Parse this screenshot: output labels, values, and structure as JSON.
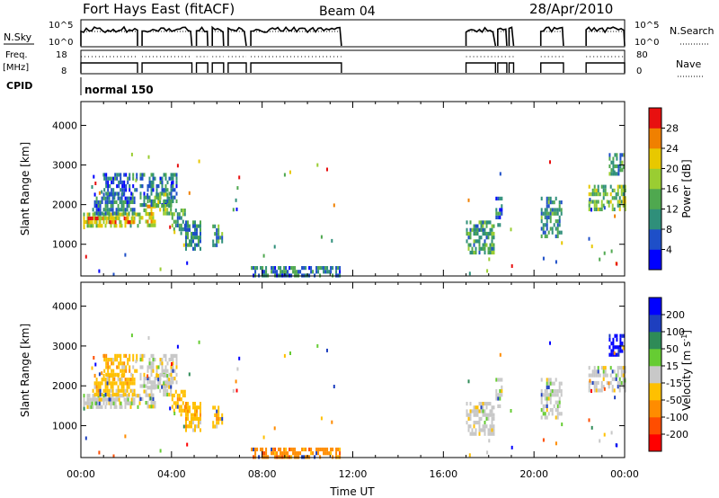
{
  "header": {
    "station": "Fort Hays East (fitACF)",
    "beam": "Beam 04",
    "date": "28/Apr/2010"
  },
  "aux_panels": {
    "nsky_label": "N.Sky",
    "nsky_ticks": [
      "10^5",
      "10^0"
    ],
    "nsearch_label": "N.Search",
    "nsearch_ticks": [
      "10^5",
      "10^0"
    ],
    "freq_label_1": "Freq.",
    "freq_label_2": "[MHz]",
    "freq_ticks": [
      "18",
      "8"
    ],
    "nave_label": "Nave",
    "nave_ticks": [
      "80",
      "0"
    ],
    "cpid_label": "CPID",
    "cpid_value": "normal 150",
    "data_blocks_hours": [
      [
        0,
        2.5
      ],
      [
        2.7,
        4.9
      ],
      [
        5.1,
        5.6
      ],
      [
        5.8,
        6.3
      ],
      [
        6.5,
        7.3
      ],
      [
        7.5,
        11.5
      ],
      [
        17,
        18.3
      ],
      [
        18.4,
        18.8
      ],
      [
        18.9,
        19.1
      ],
      [
        20.3,
        21.3
      ],
      [
        22.3,
        24
      ]
    ]
  },
  "colors": {
    "power_scale": [
      "#0000ff",
      "#1e4fc8",
      "#2f8f7a",
      "#4fa84f",
      "#9acd32",
      "#e8c800",
      "#f08000",
      "#e81010"
    ],
    "velocity_scale": [
      "#ff0000",
      "#ff4d00",
      "#ff8c00",
      "#ffc000",
      "#c8c8c8",
      "#66cc33",
      "#2e8b57",
      "#1e3fbf",
      "#0000ff"
    ]
  },
  "chart_data": [
    {
      "type": "heatmap",
      "name": "power-panel",
      "xlabel": "",
      "ylabel": "Slant Range [km]",
      "xlim": [
        0,
        24
      ],
      "ylim": [
        200,
        4600
      ],
      "y_ticks": [
        "1000",
        "2000",
        "3000",
        "4000"
      ],
      "colorbar_label": "Power [dB]",
      "colorbar_ticks": [
        "4",
        "8",
        "12",
        "16",
        "20",
        "24",
        "28"
      ],
      "colorbar_range": [
        0,
        32
      ],
      "regions": [
        {
          "t0": 0.1,
          "t1": 2.6,
          "r0": 1450,
          "r1": 1800,
          "v": 18
        },
        {
          "t0": 0.3,
          "t1": 2.3,
          "r0": 1550,
          "r1": 1700,
          "v": 26
        },
        {
          "t0": 0.5,
          "t1": 2.4,
          "r0": 1800,
          "r1": 2300,
          "v": 8
        },
        {
          "t0": 1.0,
          "t1": 2.5,
          "r0": 2300,
          "r1": 2800,
          "v": 6
        },
        {
          "t0": 2.6,
          "t1": 3.3,
          "r0": 1500,
          "r1": 2000,
          "v": 22
        },
        {
          "t0": 2.6,
          "t1": 4.2,
          "r0": 2000,
          "r1": 2800,
          "v": 9
        },
        {
          "t0": 3.3,
          "t1": 4.0,
          "r0": 1800,
          "r1": 2300,
          "v": 17
        },
        {
          "t0": 4.0,
          "t1": 4.6,
          "r0": 1400,
          "r1": 1900,
          "v": 10
        },
        {
          "t0": 4.6,
          "t1": 5.3,
          "r0": 900,
          "r1": 1600,
          "v": 9
        },
        {
          "t0": 5.8,
          "t1": 6.2,
          "r0": 1000,
          "r1": 1500,
          "v": 11
        },
        {
          "t0": 7.5,
          "t1": 11.4,
          "r0": 250,
          "r1": 450,
          "v": 8
        },
        {
          "t0": 17.0,
          "t1": 18.2,
          "r0": 800,
          "r1": 1600,
          "v": 11
        },
        {
          "t0": 18.3,
          "t1": 18.6,
          "r0": 1500,
          "r1": 2200,
          "v": 7
        },
        {
          "t0": 20.3,
          "t1": 21.2,
          "r0": 1200,
          "r1": 2200,
          "v": 10
        },
        {
          "t0": 22.4,
          "t1": 24.0,
          "r0": 1900,
          "r1": 2500,
          "v": 15
        },
        {
          "t0": 23.3,
          "t1": 24.0,
          "r0": 2800,
          "r1": 3300,
          "v": 10
        }
      ]
    },
    {
      "type": "heatmap",
      "name": "velocity-panel",
      "xlabel": "Time UT",
      "ylabel": "Slant Range [km]",
      "xlim": [
        0,
        24
      ],
      "ylim": [
        200,
        4600
      ],
      "x_ticks": [
        "00:00",
        "04:00",
        "08:00",
        "12:00",
        "16:00",
        "20:00",
        "00:00"
      ],
      "y_ticks": [
        "1000",
        "2000",
        "3000",
        "4000"
      ],
      "colorbar_label": "Velocity [m s^-1]",
      "colorbar_ticks": [
        "200",
        "100",
        "50",
        "15",
        "-15",
        "-50",
        "-100",
        "-200"
      ],
      "regions": [
        {
          "t0": 0.1,
          "t1": 2.6,
          "r0": 1450,
          "r1": 1800,
          "v": 4
        },
        {
          "t0": 0.3,
          "t1": 2.3,
          "r0": 1550,
          "r1": 1700,
          "v": 4
        },
        {
          "t0": 0.5,
          "t1": 2.4,
          "r0": 1800,
          "r1": 2300,
          "v": 3
        },
        {
          "t0": 1.0,
          "t1": 2.5,
          "r0": 2300,
          "r1": 2800,
          "v": 3
        },
        {
          "t0": 2.6,
          "t1": 3.3,
          "r0": 1500,
          "r1": 2000,
          "v": 4
        },
        {
          "t0": 2.6,
          "t1": 4.2,
          "r0": 2000,
          "r1": 2800,
          "v": 4
        },
        {
          "t0": 3.3,
          "t1": 4.0,
          "r0": 1800,
          "r1": 2300,
          "v": 4
        },
        {
          "t0": 4.0,
          "t1": 4.6,
          "r0": 1400,
          "r1": 1900,
          "v": 3
        },
        {
          "t0": 4.6,
          "t1": 5.3,
          "r0": 900,
          "r1": 1600,
          "v": 3
        },
        {
          "t0": 5.8,
          "t1": 6.2,
          "r0": 1000,
          "r1": 1500,
          "v": 3
        },
        {
          "t0": 7.5,
          "t1": 11.4,
          "r0": 250,
          "r1": 450,
          "v": 2
        },
        {
          "t0": 17.0,
          "t1": 18.2,
          "r0": 800,
          "r1": 1600,
          "v": 4
        },
        {
          "t0": 18.3,
          "t1": 18.6,
          "r0": 1500,
          "r1": 2200,
          "v": 4
        },
        {
          "t0": 20.3,
          "t1": 21.2,
          "r0": 1200,
          "r1": 2200,
          "v": 4
        },
        {
          "t0": 22.4,
          "t1": 24.0,
          "r0": 1900,
          "r1": 2500,
          "v": 4
        },
        {
          "t0": 23.3,
          "t1": 24.0,
          "r0": 2800,
          "r1": 3300,
          "v": 8
        }
      ]
    }
  ]
}
